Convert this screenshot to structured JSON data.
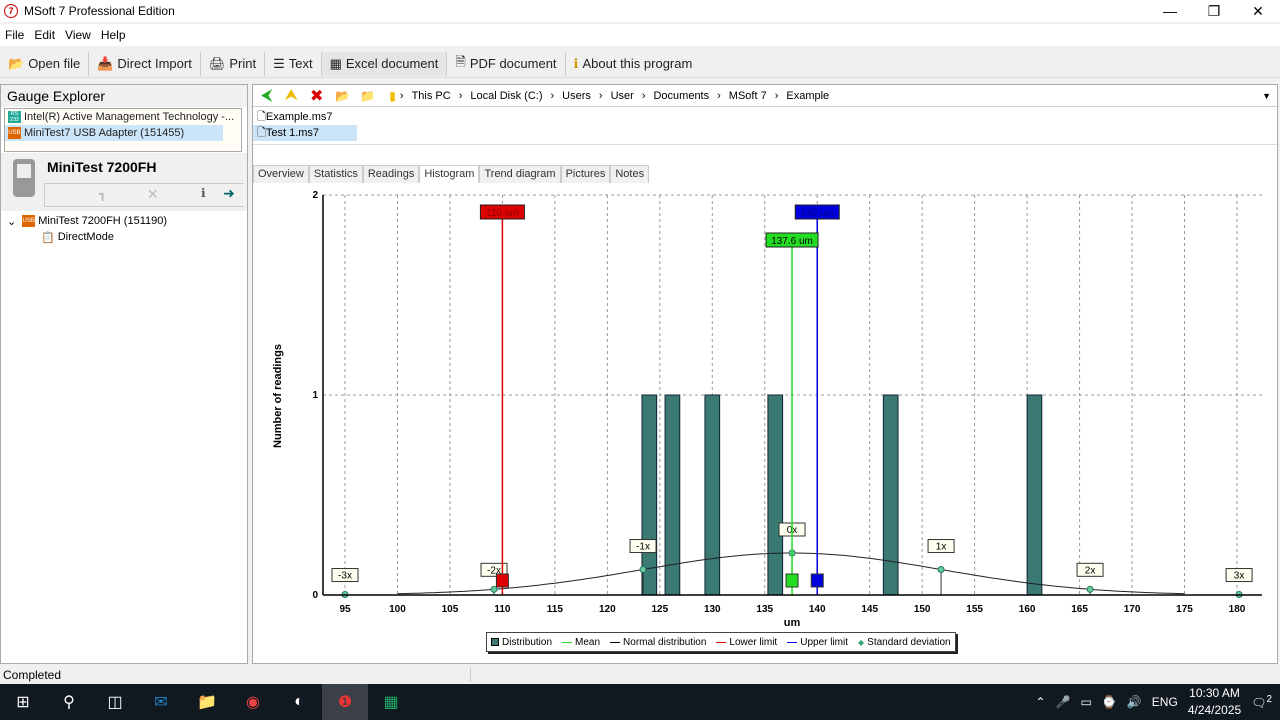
{
  "window": {
    "title": "MSoft 7 Professional Edition",
    "app_icon": "7"
  },
  "menu": [
    "File",
    "Edit",
    "View",
    "Help"
  ],
  "toolbar": [
    {
      "label": "Open file",
      "icon": "open-icon"
    },
    {
      "label": "Direct Import",
      "icon": "import-icon"
    },
    {
      "label": "Print",
      "icon": "print-icon"
    },
    {
      "label": "Text",
      "icon": "text-icon"
    },
    {
      "label": "Excel document",
      "icon": "excel-icon"
    },
    {
      "label": "PDF document",
      "icon": "pdf-icon"
    },
    {
      "label": "About this program",
      "icon": "info-icon"
    }
  ],
  "gauge_explorer": {
    "title": "Gauge Explorer",
    "devices": [
      {
        "label": "Intel(R) Active Management Technology -...",
        "badge": "RS 232"
      },
      {
        "label": "MiniTest7 USB Adapter (151455)",
        "badge": "USB",
        "selected": true
      }
    ],
    "gauge_name": "MiniTest 7200FH",
    "tree": [
      {
        "label": "MiniTest 7200FH (151190)",
        "badge": "USB"
      },
      {
        "label": "DirectMode"
      }
    ]
  },
  "breadcrumb": [
    "This PC",
    "Local Disk (C:)",
    "Users",
    "User",
    "Documents",
    "MSoft 7",
    "Example"
  ],
  "files": [
    {
      "label": "Example.ms7"
    },
    {
      "label": "Test 1.ms7",
      "selected": true
    }
  ],
  "tabs": [
    "Overview",
    "Statistics",
    "Readings",
    "Histogram",
    "Trend diagram",
    "Pictures",
    "Notes"
  ],
  "active_tab": "Histogram",
  "chart_data": {
    "type": "bar",
    "xlabel": "um",
    "ylabel": "Number of readings",
    "xlim": [
      93,
      183
    ],
    "ylim": [
      0,
      2
    ],
    "xticks": [
      95,
      100,
      105,
      110,
      115,
      120,
      125,
      130,
      135,
      140,
      145,
      150,
      155,
      160,
      165,
      170,
      175,
      180
    ],
    "yticks": [
      0,
      1,
      2
    ],
    "grid": true,
    "bins": [
      {
        "center": 124,
        "count": 1
      },
      {
        "center": 126.2,
        "count": 1
      },
      {
        "center": 130,
        "count": 1
      },
      {
        "center": 136,
        "count": 1
      },
      {
        "center": 147,
        "count": 1
      },
      {
        "center": 160.7,
        "count": 1
      }
    ],
    "bin_width": 1.4,
    "mean": {
      "value": 137.6,
      "label": "137.6 um",
      "color": "#22dd22"
    },
    "lower_limit": {
      "value": 110,
      "label": "110 um",
      "color": "#dd0000"
    },
    "upper_limit": {
      "value": 140,
      "label": "140 um",
      "color": "#0000dd"
    },
    "normal_distribution": {
      "mean": 137.6,
      "sd": 14.2,
      "peak": 0.21
    },
    "sd_markers": [
      "-3x",
      "-2x",
      "-1x",
      "0x",
      "1x",
      "2x",
      "3x"
    ],
    "bar_color": "#3a7a72",
    "legend": [
      "Distribution",
      "Mean",
      "Normal distribution",
      "Lower limit",
      "Upper limit",
      "Standard deviation"
    ],
    "legend_placement": "bottom"
  },
  "status": "Completed",
  "taskbar": {
    "time": "10:30 AM",
    "date": "4/24/2025",
    "lang": "ENG",
    "notifications": "2"
  }
}
